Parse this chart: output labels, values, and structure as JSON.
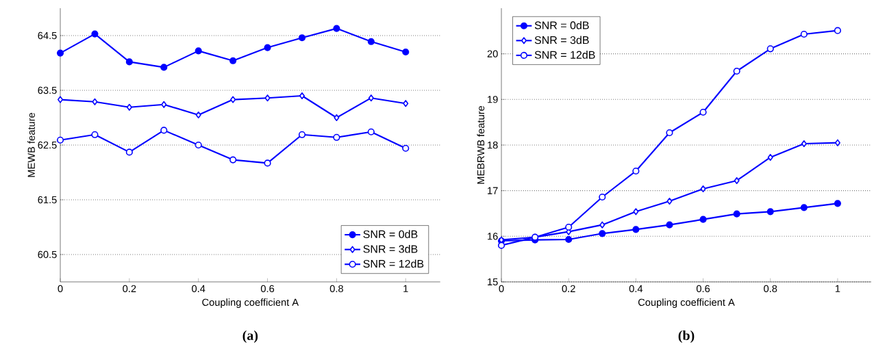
{
  "chart_data": [
    {
      "type": "line",
      "xlabel": "Coupling coefficient A",
      "ylabel": "MEWB feature",
      "x": [
        0,
        0.1,
        0.2,
        0.3,
        0.4,
        0.5,
        0.6,
        0.7,
        0.8,
        0.9,
        1
      ],
      "series": [
        {
          "name": "SNR = 0dB",
          "color": "#0000ff",
          "marker": "circle",
          "values": [
            64.18,
            64.53,
            64.02,
            63.92,
            64.22,
            64.04,
            64.28,
            64.46,
            64.63,
            64.39,
            64.2
          ]
        },
        {
          "name": "SNR = 3dB",
          "color": "#0000ff",
          "marker": "diamond",
          "values": [
            63.33,
            63.29,
            63.19,
            63.24,
            63.05,
            63.33,
            63.36,
            63.4,
            63.0,
            63.36,
            63.26
          ]
        },
        {
          "name": "SNR = 12dB",
          "color": "#0000ff",
          "marker": "circle",
          "values": [
            62.59,
            62.69,
            62.37,
            62.77,
            62.5,
            62.23,
            62.17,
            62.69,
            62.64,
            62.74,
            62.44
          ]
        }
      ],
      "xlim": [
        0,
        1.1
      ],
      "ylim": [
        60,
        65
      ],
      "xticks": [
        0,
        0.2,
        0.4,
        0.6,
        0.8,
        1
      ],
      "yticks": [
        60.5,
        61.5,
        62.5,
        63.5,
        64.5
      ],
      "grid": "y",
      "legend": "bottom right",
      "annotations": [
        "**(a)**"
      ]
    },
    {
      "type": "line",
      "xlabel": "Coupling coefficient A",
      "ylabel": "MEBRWB feature",
      "x": [
        0,
        0.1,
        0.2,
        0.3,
        0.4,
        0.5,
        0.6,
        0.7,
        0.8,
        0.9,
        1
      ],
      "series": [
        {
          "name": "SNR = 0dB",
          "color": "#0000ff",
          "marker": "circle",
          "values": [
            15.9,
            15.92,
            15.93,
            16.06,
            16.15,
            16.25,
            16.37,
            16.49,
            16.54,
            16.63,
            16.72
          ]
        },
        {
          "name": "SNR = 3dB",
          "color": "#0000ff",
          "marker": "diamond",
          "values": [
            15.92,
            15.98,
            16.1,
            16.25,
            16.54,
            16.77,
            17.04,
            17.22,
            17.73,
            18.03,
            18.05
          ]
        },
        {
          "name": "SNR = 12dB",
          "color": "#0000ff",
          "marker": "circle",
          "values": [
            15.8,
            15.98,
            16.2,
            16.86,
            17.43,
            18.27,
            18.72,
            19.62,
            20.11,
            20.43,
            20.51
          ]
        }
      ],
      "xlim": [
        0,
        1.1
      ],
      "ylim": [
        15,
        21
      ],
      "xticks": [
        0,
        0.2,
        0.4,
        0.6,
        0.8,
        1
      ],
      "yticks": [
        15,
        16,
        17,
        18,
        19,
        20
      ],
      "grid": "y",
      "legend": "top left",
      "annotations": [
        "**(b)**"
      ]
    }
  ]
}
